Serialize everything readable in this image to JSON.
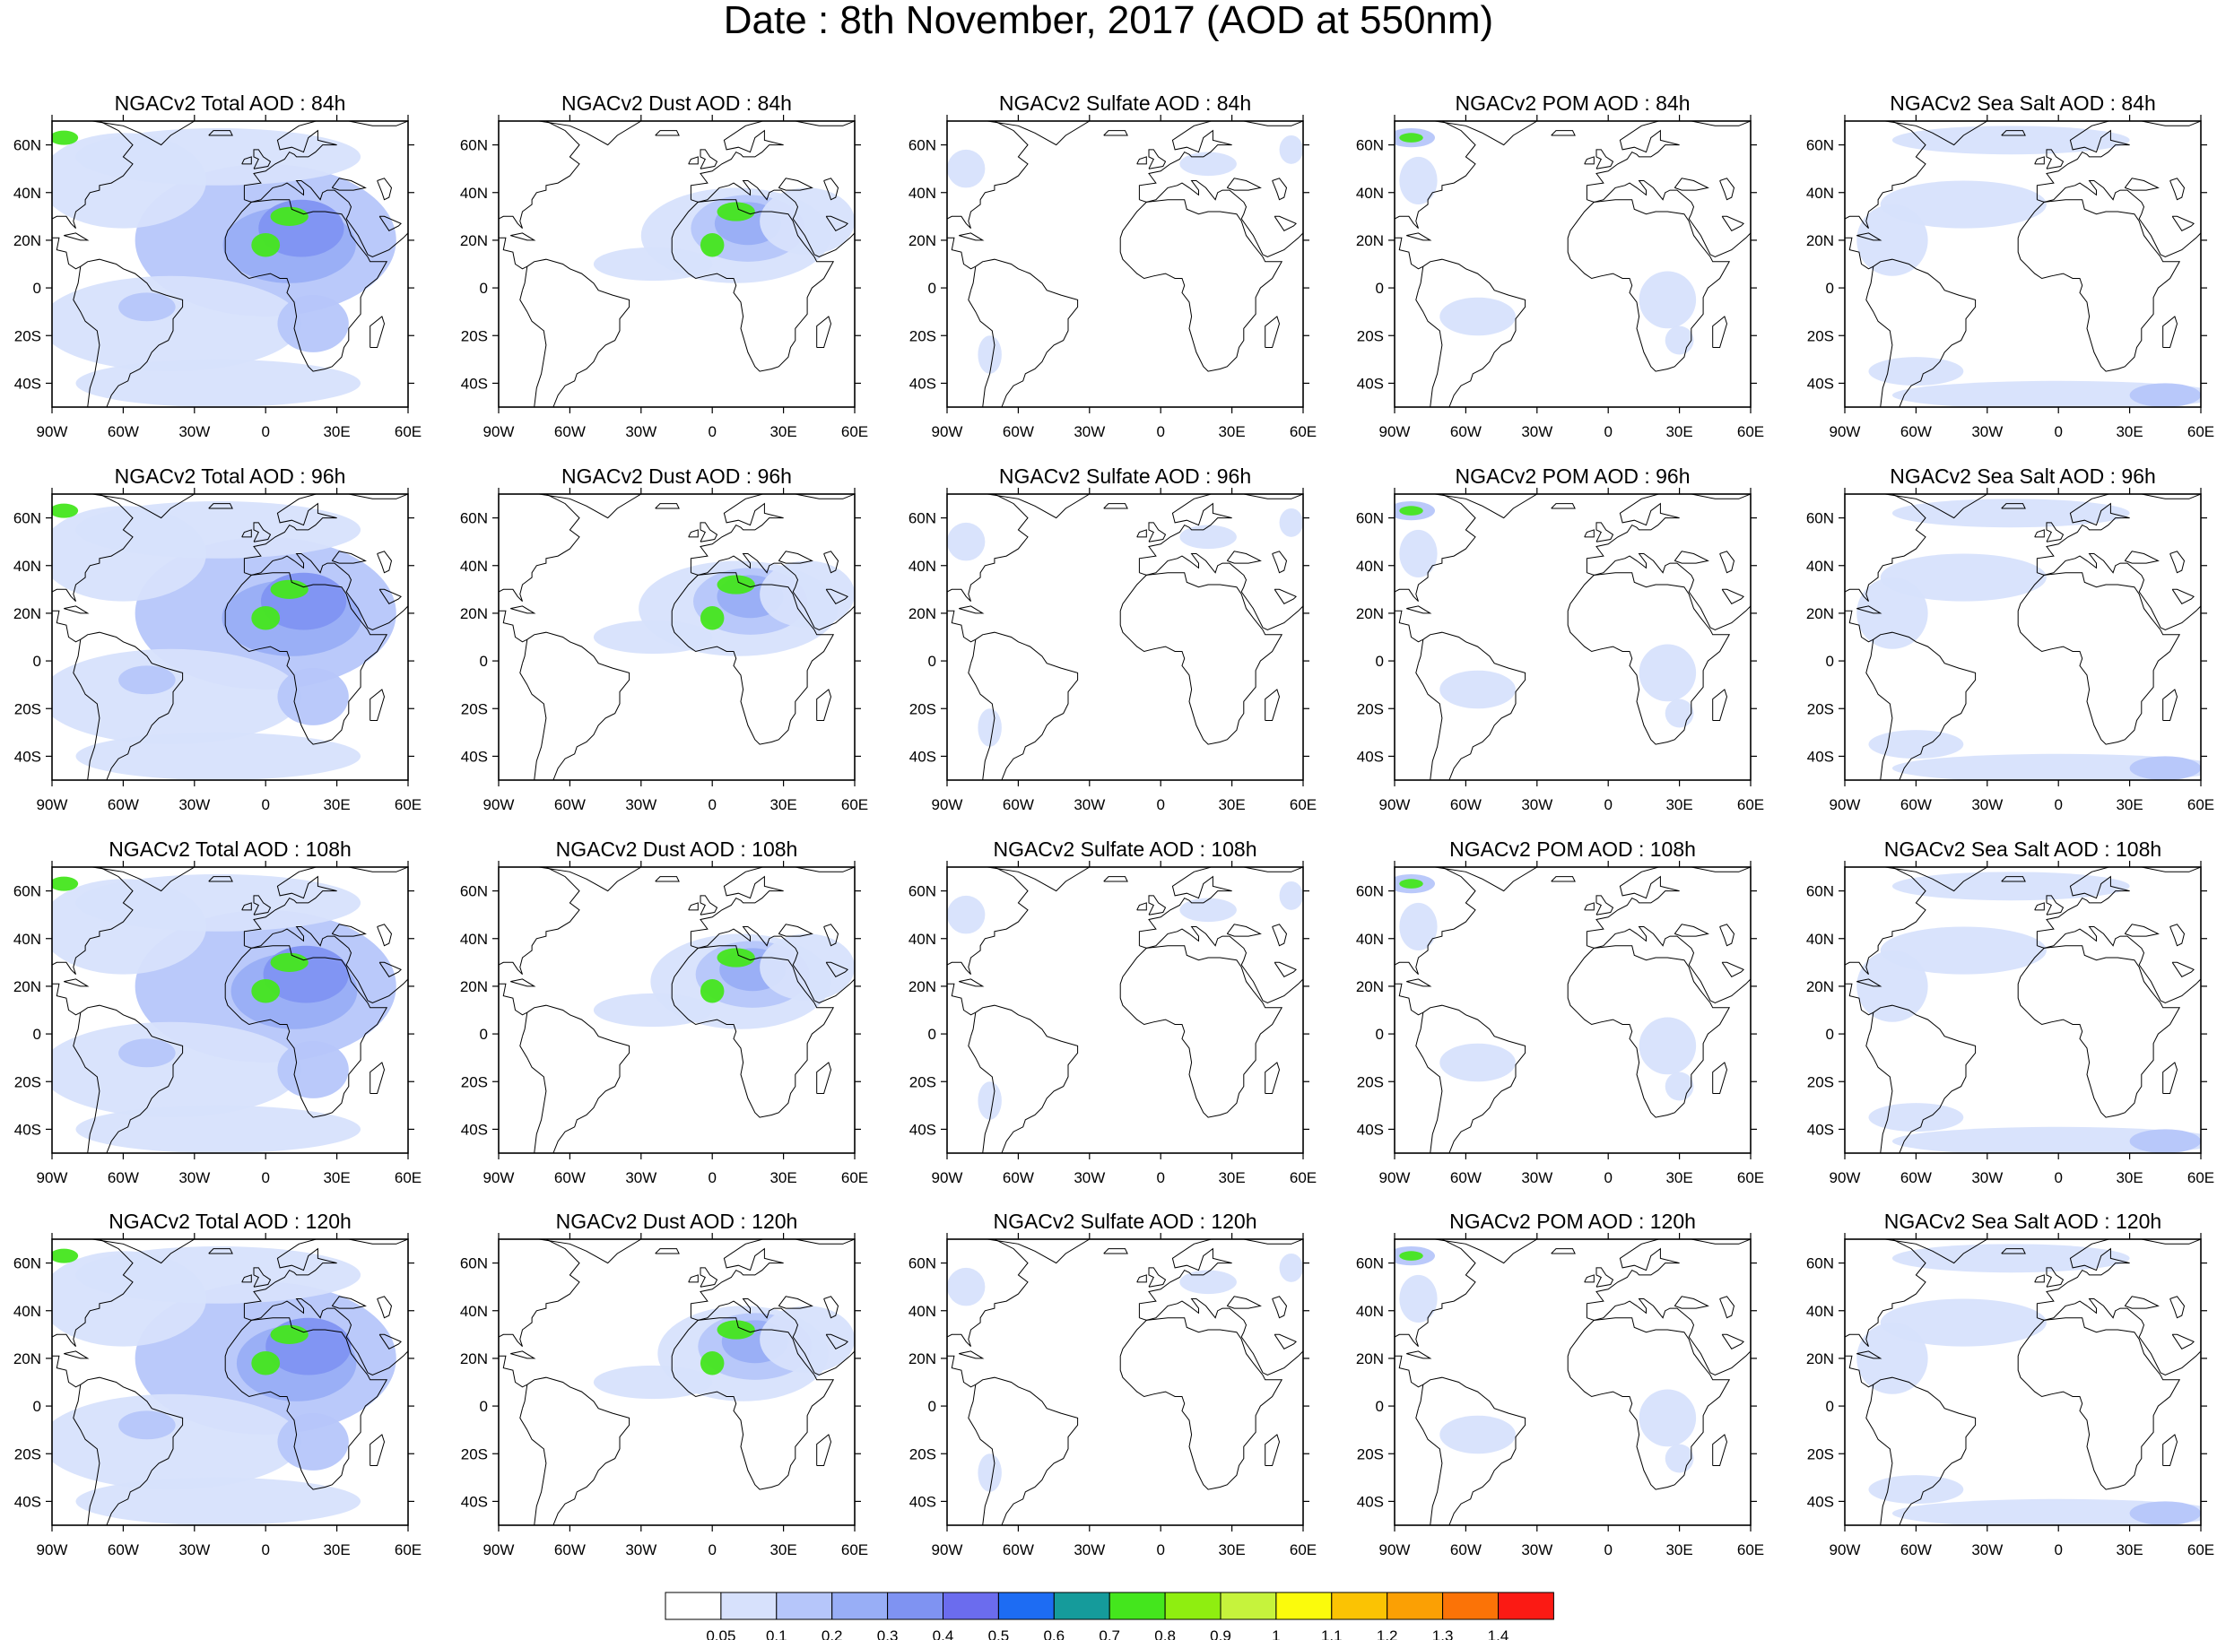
{
  "title": "Date : 8th November, 2017 (AOD at 550nm)",
  "panels": [
    {
      "row": 0,
      "col": 0,
      "title": "NGACv2 Total AOD : 84h",
      "field": "total",
      "lead": 84
    },
    {
      "row": 0,
      "col": 1,
      "title": "NGACv2 Dust AOD : 84h",
      "field": "dust",
      "lead": 84
    },
    {
      "row": 0,
      "col": 2,
      "title": "NGACv2 Sulfate AOD : 84h",
      "field": "sulfate",
      "lead": 84
    },
    {
      "row": 0,
      "col": 3,
      "title": "NGACv2 POM AOD : 84h",
      "field": "pom",
      "lead": 84
    },
    {
      "row": 0,
      "col": 4,
      "title": "NGACv2 Sea Salt AOD : 84h",
      "field": "seasalt",
      "lead": 84
    },
    {
      "row": 1,
      "col": 0,
      "title": "NGACv2 Total AOD : 96h",
      "field": "total",
      "lead": 96
    },
    {
      "row": 1,
      "col": 1,
      "title": "NGACv2 Dust AOD : 96h",
      "field": "dust",
      "lead": 96
    },
    {
      "row": 1,
      "col": 2,
      "title": "NGACv2 Sulfate AOD : 96h",
      "field": "sulfate",
      "lead": 96
    },
    {
      "row": 1,
      "col": 3,
      "title": "NGACv2 POM AOD : 96h",
      "field": "pom",
      "lead": 96
    },
    {
      "row": 1,
      "col": 4,
      "title": "NGACv2 Sea Salt AOD : 96h",
      "field": "seasalt",
      "lead": 96
    },
    {
      "row": 2,
      "col": 0,
      "title": "NGACv2 Total AOD : 108h",
      "field": "total",
      "lead": 108
    },
    {
      "row": 2,
      "col": 1,
      "title": "NGACv2 Dust AOD : 108h",
      "field": "dust",
      "lead": 108
    },
    {
      "row": 2,
      "col": 2,
      "title": "NGACv2 Sulfate AOD : 108h",
      "field": "sulfate",
      "lead": 108
    },
    {
      "row": 2,
      "col": 3,
      "title": "NGACv2 POM AOD : 108h",
      "field": "pom",
      "lead": 108
    },
    {
      "row": 2,
      "col": 4,
      "title": "NGACv2 Sea Salt AOD : 108h",
      "field": "seasalt",
      "lead": 108
    },
    {
      "row": 3,
      "col": 0,
      "title": "NGACv2 Total AOD : 120h",
      "field": "total",
      "lead": 120
    },
    {
      "row": 3,
      "col": 1,
      "title": "NGACv2 Dust AOD : 120h",
      "field": "dust",
      "lead": 120
    },
    {
      "row": 3,
      "col": 2,
      "title": "NGACv2 Sulfate AOD : 120h",
      "field": "sulfate",
      "lead": 120
    },
    {
      "row": 3,
      "col": 3,
      "title": "NGACv2 POM AOD : 120h",
      "field": "pom",
      "lead": 120
    },
    {
      "row": 3,
      "col": 4,
      "title": "NGACv2 Sea Salt  AOD : 120h",
      "field": "seasalt",
      "lead": 120
    }
  ],
  "map_extent": {
    "lon": [
      -90,
      60
    ],
    "lat": [
      -50,
      70
    ]
  },
  "x_ticks": [
    {
      "value": -90,
      "label": "90W"
    },
    {
      "value": -60,
      "label": "60W"
    },
    {
      "value": -30,
      "label": "30W"
    },
    {
      "value": 0,
      "label": "0"
    },
    {
      "value": 30,
      "label": "30E"
    },
    {
      "value": 60,
      "label": "60E"
    }
  ],
  "y_ticks": [
    {
      "value": 60,
      "label": "60N"
    },
    {
      "value": 40,
      "label": "40N"
    },
    {
      "value": 20,
      "label": "20N"
    },
    {
      "value": 0,
      "label": "0"
    },
    {
      "value": -20,
      "label": "20S"
    },
    {
      "value": -40,
      "label": "40S"
    }
  ],
  "colorbar": {
    "levels": [
      "0.05",
      "0.1",
      "0.2",
      "0.3",
      "0.4",
      "0.5",
      "0.6",
      "0.7",
      "0.8",
      "0.9",
      "1",
      "1.1",
      "1.2",
      "1.3",
      "1.4"
    ],
    "colors": [
      "#ffffff",
      "#d7e1fc",
      "#b6c6fa",
      "#98aef6",
      "#7f93f2",
      "#6b6cee",
      "#1d6cf3",
      "#159b9b",
      "#44e61d",
      "#8fee10",
      "#c6f33c",
      "#fbfb0c",
      "#fbc303",
      "#fba004",
      "#fb7307",
      "#fb1a14"
    ]
  },
  "style": {
    "land_outline": "#000000",
    "frame": "#000000"
  }
}
